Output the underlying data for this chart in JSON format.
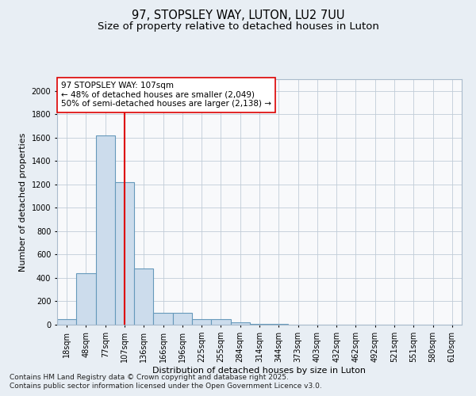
{
  "title1": "97, STOPSLEY WAY, LUTON, LU2 7UU",
  "title2": "Size of property relative to detached houses in Luton",
  "xlabel": "Distribution of detached houses by size in Luton",
  "ylabel": "Number of detached properties",
  "categories": [
    "18sqm",
    "48sqm",
    "77sqm",
    "107sqm",
    "136sqm",
    "166sqm",
    "196sqm",
    "225sqm",
    "255sqm",
    "284sqm",
    "314sqm",
    "344sqm",
    "373sqm",
    "403sqm",
    "432sqm",
    "462sqm",
    "492sqm",
    "521sqm",
    "551sqm",
    "580sqm",
    "610sqm"
  ],
  "values": [
    50,
    440,
    1620,
    1220,
    480,
    100,
    100,
    50,
    50,
    20,
    10,
    5,
    0,
    0,
    0,
    0,
    0,
    0,
    0,
    0,
    0
  ],
  "bar_color": "#ccdcec",
  "bar_edge_color": "#6699bb",
  "vline_x_idx": 3,
  "vline_color": "#dd0000",
  "annotation_text": "97 STOPSLEY WAY: 107sqm\n← 48% of detached houses are smaller (2,049)\n50% of semi-detached houses are larger (2,138) →",
  "annotation_box_facecolor": "#ffffff",
  "annotation_box_edgecolor": "#dd0000",
  "ylim": [
    0,
    2100
  ],
  "yticks": [
    0,
    200,
    400,
    600,
    800,
    1000,
    1200,
    1400,
    1600,
    1800,
    2000
  ],
  "bg_color": "#e8eef4",
  "plot_bg_color": "#f8f9fb",
  "title_fontsize": 10.5,
  "subtitle_fontsize": 9.5,
  "axis_label_fontsize": 8,
  "tick_fontsize": 7,
  "annotation_fontsize": 7.5,
  "footer_fontsize": 6.5,
  "footer1": "Contains HM Land Registry data © Crown copyright and database right 2025.",
  "footer2": "Contains public sector information licensed under the Open Government Licence v3.0."
}
